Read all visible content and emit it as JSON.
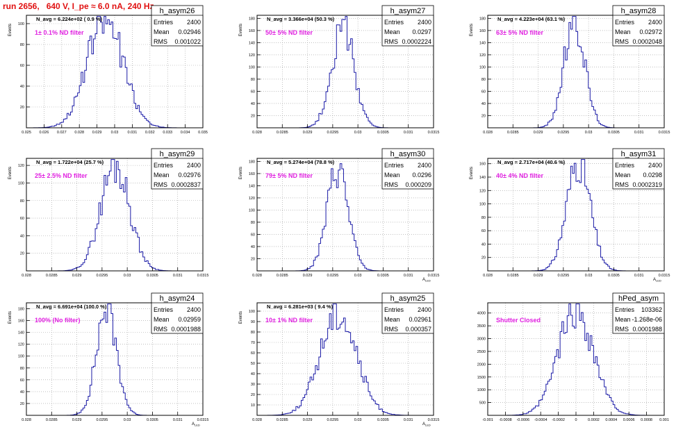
{
  "page": {
    "title": "run 2656,   640 V, I_pe ≈ 6.0 nA, 240 Hz"
  },
  "colors": {
    "histogram": "#1a1aa6",
    "annotation": "#e020e0",
    "title": "#e01010",
    "grid": "#999999"
  },
  "chart_data": [
    {
      "type": "histogram",
      "name": "h_asym26",
      "stats": {
        "entries_label": "Entries",
        "entries": "2400",
        "mean_label": "Mean",
        "mean": "0.02946",
        "rms_label": "RMS",
        "rms": "0.001022"
      },
      "navg": "N_avg = 6.224e+02 ( 0.9 %)",
      "annotation": "1± 0.1% ND filter",
      "ylabel": "Events",
      "xlabel": "",
      "xlim": [
        0.025,
        0.035
      ],
      "ylim": [
        0,
        108
      ],
      "xticks": [
        "0.025",
        "0.026",
        "0.027",
        "0.028",
        "0.029",
        "0.03",
        "0.031",
        "0.032",
        "0.033",
        "0.034",
        "0.035"
      ],
      "yticks": [
        "20",
        "40",
        "60",
        "80",
        "100"
      ],
      "mean": 0.02946,
      "rms": 0.001022,
      "peak": 104,
      "seed": 26
    },
    {
      "type": "histogram",
      "name": "h_asym27",
      "stats": {
        "entries_label": "Entries",
        "entries": "2400",
        "mean_label": "Mean",
        "mean": "0.0297",
        "rms_label": "RMS",
        "rms": "0.0002224"
      },
      "navg": "N_avg = 3.366e+04 (50.3 %)",
      "annotation": "50± 5% ND filter",
      "ylabel": "Events",
      "xlabel": "",
      "xlim": [
        0.028,
        0.0315
      ],
      "ylim": [
        0,
        185
      ],
      "xticks": [
        "0.028",
        "0.0285",
        "0.029",
        "0.0295",
        "0.03",
        "0.0305",
        "0.031",
        "0.0315"
      ],
      "yticks": [
        "20",
        "40",
        "60",
        "80",
        "100",
        "120",
        "140",
        "160",
        "180"
      ],
      "mean": 0.0297,
      "rms": 0.0002224,
      "peak": 165,
      "seed": 27
    },
    {
      "type": "histogram",
      "name": "h_asym28",
      "stats": {
        "entries_label": "Entries",
        "entries": "2400",
        "mean_label": "Mean",
        "mean": "0.02972",
        "rms_label": "RMS",
        "rms": "0.0002048"
      },
      "navg": "N_avg = 4.223e+04 (63.1 %)",
      "annotation": "63± 5% ND filter",
      "ylabel": "Events",
      "xlabel": "",
      "xlim": [
        0.028,
        0.0315
      ],
      "ylim": [
        0,
        185
      ],
      "xticks": [
        "0.028",
        "0.0285",
        "0.029",
        "0.0295",
        "0.03",
        "0.0305",
        "0.031",
        "0.0315"
      ],
      "yticks": [
        "20",
        "40",
        "60",
        "80",
        "100",
        "120",
        "140",
        "160",
        "180"
      ],
      "mean": 0.02972,
      "rms": 0.0002048,
      "peak": 178,
      "seed": 28
    },
    {
      "type": "histogram",
      "name": "h_asym29",
      "stats": {
        "entries_label": "Entries",
        "entries": "2400",
        "mean_label": "Mean",
        "mean": "0.02976",
        "rms_label": "RMS",
        "rms": "0.0002837"
      },
      "navg": "N_avg = 1.722e+04 (25.7 %)",
      "annotation": "25± 2.5% ND filter",
      "ylabel": "Events",
      "xlabel": "",
      "xlim": [
        0.028,
        0.0315
      ],
      "ylim": [
        0,
        128
      ],
      "xticks": [
        "0.028",
        "0.0285",
        "0.029",
        "0.0295",
        "0.03",
        "0.0305",
        "0.031",
        "0.0315"
      ],
      "yticks": [
        "20",
        "40",
        "60",
        "80",
        "100",
        "120"
      ],
      "mean": 0.02976,
      "rms": 0.0002837,
      "peak": 122,
      "seed": 29
    },
    {
      "type": "histogram",
      "name": "h_asym30",
      "stats": {
        "entries_label": "Entries",
        "entries": "2400",
        "mean_label": "Mean",
        "mean": "0.0296",
        "rms_label": "RMS",
        "rms": "0.000209"
      },
      "navg": "N_avg = 5.274e+04 (78.8 %)",
      "annotation": "79± 5% ND filter",
      "ylabel": "Events",
      "xlabel": "A_LED",
      "xlim": [
        0.028,
        0.0315
      ],
      "ylim": [
        0,
        185
      ],
      "xticks": [
        "0.028",
        "0.0285",
        "0.029",
        "0.0295",
        "0.03",
        "0.0305",
        "0.031",
        "0.0315"
      ],
      "yticks": [
        "20",
        "40",
        "60",
        "80",
        "100",
        "120",
        "140",
        "160",
        "180"
      ],
      "mean": 0.0296,
      "rms": 0.000209,
      "peak": 170,
      "seed": 30
    },
    {
      "type": "histogram",
      "name": "h_asym31",
      "stats": {
        "entries_label": "Entries",
        "entries": "2400",
        "mean_label": "Mean",
        "mean": "0.0298",
        "rms_label": "RMS",
        "rms": "0.0002319"
      },
      "navg": "N_avg = 2.717e+04 (40.6 %)",
      "annotation": "40± 4% ND filter",
      "ylabel": "Events",
      "xlabel": "A_LED",
      "xlim": [
        0.028,
        0.0315
      ],
      "ylim": [
        0,
        168
      ],
      "xticks": [
        "0.028",
        "0.0285",
        "0.029",
        "0.0295",
        "0.03",
        "0.0305",
        "0.031",
        "0.0315"
      ],
      "yticks": [
        "20",
        "40",
        "60",
        "80",
        "100",
        "120",
        "140",
        "160"
      ],
      "mean": 0.0298,
      "rms": 0.0002319,
      "peak": 165,
      "seed": 31
    },
    {
      "type": "histogram",
      "name": "h_asym24",
      "stats": {
        "entries_label": "Entries",
        "entries": "2400",
        "mean_label": "Mean",
        "mean": "0.02959",
        "rms_label": "RMS",
        "rms": "0.0001988"
      },
      "navg": "N_avg = 6.691e+04 (100.0 %)",
      "annotation": "100% (No filter)",
      "ylabel": "Events",
      "xlabel": "A_LED",
      "xlim": [
        0.028,
        0.0315
      ],
      "ylim": [
        0,
        190
      ],
      "xticks": [
        "0.028",
        "0.0285",
        "0.029",
        "0.0295",
        "0.03",
        "0.0305",
        "0.031",
        "0.0315"
      ],
      "yticks": [
        "20",
        "40",
        "60",
        "80",
        "100",
        "120",
        "140",
        "160",
        "180"
      ],
      "mean": 0.02959,
      "rms": 0.0001988,
      "peak": 182,
      "seed": 24
    },
    {
      "type": "histogram",
      "name": "h_asym25",
      "stats": {
        "entries_label": "Entries",
        "entries": "2400",
        "mean_label": "Mean",
        "mean": "0.02961",
        "rms_label": "RMS",
        "rms": "0.000357"
      },
      "navg": "N_avg = 6.281e+03 ( 9.4 %)",
      "annotation": "10± 1% ND filter",
      "ylabel": "Events",
      "xlabel": "A_LED",
      "xlim": [
        0.028,
        0.0315
      ],
      "ylim": [
        0,
        108
      ],
      "xticks": [
        "0.028",
        "0.0285",
        "0.029",
        "0.0295",
        "0.03",
        "0.0305",
        "0.031",
        "0.0315"
      ],
      "yticks": [
        "10",
        "20",
        "30",
        "40",
        "50",
        "60",
        "70",
        "80",
        "90",
        "100"
      ],
      "mean": 0.02961,
      "rms": 0.000357,
      "peak": 100,
      "seed": 25
    },
    {
      "type": "histogram",
      "name": "hPed_asym",
      "stats": {
        "entries_label": "Entries",
        "entries": "103362",
        "mean_label": "Mean",
        "mean": "-1.268e-06",
        "rms_label": "RMS",
        "rms": "0.0001988"
      },
      "navg": "",
      "annotation": "Shutter Closed",
      "ylabel": "",
      "xlabel": "",
      "xlim": [
        -0.001,
        0.001
      ],
      "ylim": [
        0,
        4400
      ],
      "xticks": [
        "-0.001",
        "-0.0008",
        "-0.0006",
        "-0.0004",
        "-0.0002",
        "0",
        "0.0002",
        "0.0004",
        "0.0006",
        "0.0008",
        "0.001"
      ],
      "yticks": [
        "500",
        "1000",
        "1500",
        "2000",
        "2500",
        "3000",
        "3500",
        "4000"
      ],
      "mean": -1.268e-06,
      "rms": 0.0001988,
      "peak": 4150,
      "seed": 99
    }
  ]
}
